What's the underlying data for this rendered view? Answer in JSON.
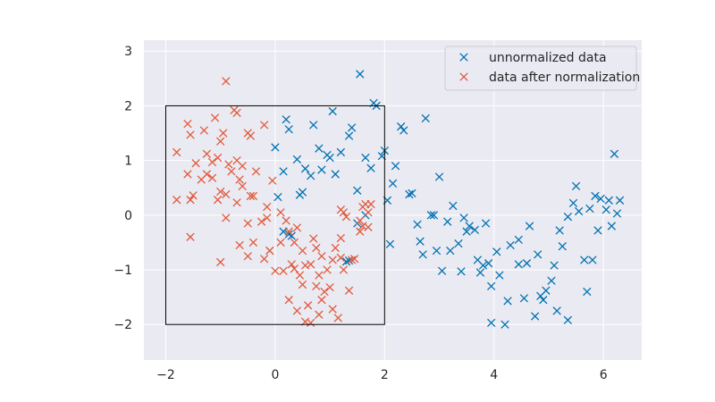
{
  "chart_data": {
    "type": "scatter",
    "title": "",
    "xlabel": "",
    "ylabel": "",
    "xlim": [
      -2.4,
      6.7
    ],
    "ylim": [
      -2.65,
      3.2
    ],
    "grid": true,
    "legend_position": "top-right",
    "xticks": [
      -2,
      0,
      2,
      4,
      6
    ],
    "yticks": [
      -2,
      -1,
      0,
      1,
      2,
      3
    ],
    "xtick_labels": [
      "−2",
      "0",
      "2",
      "4",
      "6"
    ],
    "ytick_labels": [
      "−2",
      "−1",
      "0",
      "1",
      "2",
      "3"
    ],
    "colors": {
      "background": "#eaeaf2",
      "grid": "#ffffff",
      "unnormalized": "#0072b2",
      "normalized": "#e15a3c",
      "box": "#000000"
    },
    "box": {
      "x": [
        -2,
        2
      ],
      "y": [
        -2,
        2
      ]
    },
    "series": [
      {
        "name": "unnormalized data",
        "marker": "x",
        "color": "#0072b2",
        "points": [
          [
            1.55,
            2.58
          ],
          [
            1.8,
            2.05
          ],
          [
            1.85,
            2.0
          ],
          [
            2.75,
            1.77
          ],
          [
            0.2,
            1.75
          ],
          [
            0.25,
            1.57
          ],
          [
            0.7,
            1.65
          ],
          [
            1.05,
            1.9
          ],
          [
            1.4,
            1.6
          ],
          [
            1.35,
            1.45
          ],
          [
            2.3,
            1.62
          ],
          [
            2.35,
            1.55
          ],
          [
            0.0,
            1.24
          ],
          [
            0.8,
            1.22
          ],
          [
            0.95,
            1.1
          ],
          [
            1.0,
            1.05
          ],
          [
            1.2,
            1.15
          ],
          [
            1.65,
            1.05
          ],
          [
            1.95,
            1.08
          ],
          [
            2.0,
            1.18
          ],
          [
            0.4,
            1.02
          ],
          [
            0.15,
            0.8
          ],
          [
            0.55,
            0.85
          ],
          [
            0.65,
            0.72
          ],
          [
            0.85,
            0.83
          ],
          [
            1.1,
            0.75
          ],
          [
            1.75,
            0.86
          ],
          [
            2.2,
            0.9
          ],
          [
            0.45,
            0.37
          ],
          [
            0.5,
            0.42
          ],
          [
            0.05,
            0.33
          ],
          [
            1.5,
            0.45
          ],
          [
            2.15,
            0.58
          ],
          [
            2.45,
            0.38
          ],
          [
            2.5,
            0.4
          ],
          [
            2.05,
            0.27
          ],
          [
            3.0,
            0.7
          ],
          [
            3.25,
            0.17
          ],
          [
            3.45,
            -0.05
          ],
          [
            3.55,
            -0.2
          ],
          [
            3.15,
            -0.12
          ],
          [
            2.85,
            0.0
          ],
          [
            2.9,
            0.0
          ],
          [
            2.6,
            -0.17
          ],
          [
            3.65,
            -0.27
          ],
          [
            3.85,
            -0.15
          ],
          [
            0.15,
            -0.3
          ],
          [
            0.25,
            -0.35
          ],
          [
            0.3,
            -0.38
          ],
          [
            1.5,
            -0.15
          ],
          [
            1.65,
            0.0
          ],
          [
            2.1,
            -0.53
          ],
          [
            2.65,
            -0.48
          ],
          [
            2.7,
            -0.72
          ],
          [
            2.95,
            -0.65
          ],
          [
            3.2,
            -0.65
          ],
          [
            3.35,
            -0.52
          ],
          [
            3.5,
            -0.3
          ],
          [
            3.7,
            -0.82
          ],
          [
            3.8,
            -0.92
          ],
          [
            3.75,
            -1.05
          ],
          [
            3.9,
            -0.88
          ],
          [
            4.05,
            -0.67
          ],
          [
            4.3,
            -0.55
          ],
          [
            4.45,
            -0.45
          ],
          [
            4.45,
            -0.9
          ],
          [
            4.6,
            -0.88
          ],
          [
            4.8,
            -0.72
          ],
          [
            4.65,
            -0.2
          ],
          [
            4.1,
            -1.1
          ],
          [
            3.05,
            -1.02
          ],
          [
            3.4,
            -1.03
          ],
          [
            3.95,
            -1.3
          ],
          [
            4.25,
            -1.57
          ],
          [
            4.55,
            -1.52
          ],
          [
            4.75,
            -1.85
          ],
          [
            4.85,
            -1.48
          ],
          [
            4.9,
            -1.55
          ],
          [
            4.95,
            -1.38
          ],
          [
            5.05,
            -1.2
          ],
          [
            5.1,
            -0.92
          ],
          [
            5.2,
            -0.28
          ],
          [
            5.25,
            -0.57
          ],
          [
            5.35,
            -0.03
          ],
          [
            5.45,
            0.22
          ],
          [
            5.5,
            0.53
          ],
          [
            5.55,
            0.07
          ],
          [
            5.65,
            -0.82
          ],
          [
            5.8,
            -0.82
          ],
          [
            5.75,
            0.12
          ],
          [
            5.85,
            0.35
          ],
          [
            5.9,
            -0.28
          ],
          [
            5.95,
            0.3
          ],
          [
            6.05,
            0.1
          ],
          [
            6.15,
            -0.2
          ],
          [
            6.1,
            0.27
          ],
          [
            6.25,
            0.03
          ],
          [
            6.2,
            1.12
          ],
          [
            6.3,
            0.27
          ],
          [
            5.15,
            -1.75
          ],
          [
            5.35,
            -1.92
          ],
          [
            3.95,
            -1.97
          ],
          [
            4.2,
            -2.0
          ],
          [
            5.7,
            -1.4
          ],
          [
            1.3,
            -0.85
          ],
          [
            1.35,
            -0.83
          ]
        ]
      },
      {
        "name": "data after normalization",
        "marker": "x",
        "color": "#e15a3c",
        "points": [
          [
            -0.9,
            2.45
          ],
          [
            -0.75,
            1.92
          ],
          [
            -0.7,
            1.87
          ],
          [
            -1.6,
            1.67
          ],
          [
            -1.55,
            1.47
          ],
          [
            -1.3,
            1.55
          ],
          [
            -1.1,
            1.78
          ],
          [
            -0.95,
            1.5
          ],
          [
            -1.0,
            1.35
          ],
          [
            -0.5,
            1.5
          ],
          [
            -0.45,
            1.45
          ],
          [
            -0.2,
            1.65
          ],
          [
            -1.8,
            1.15
          ],
          [
            -1.45,
            0.95
          ],
          [
            -1.25,
            1.12
          ],
          [
            -1.15,
            0.97
          ],
          [
            -1.05,
            1.05
          ],
          [
            -0.85,
            0.93
          ],
          [
            -0.7,
            1.0
          ],
          [
            -0.6,
            0.9
          ],
          [
            -1.6,
            0.75
          ],
          [
            -1.35,
            0.65
          ],
          [
            -1.25,
            0.75
          ],
          [
            -1.15,
            0.68
          ],
          [
            -0.8,
            0.8
          ],
          [
            -0.65,
            0.65
          ],
          [
            -0.35,
            0.8
          ],
          [
            -0.05,
            0.63
          ],
          [
            -1.8,
            0.28
          ],
          [
            -1.55,
            0.28
          ],
          [
            -1.5,
            0.36
          ],
          [
            -1.0,
            0.43
          ],
          [
            -1.05,
            0.28
          ],
          [
            -0.9,
            0.38
          ],
          [
            -0.6,
            0.53
          ],
          [
            -0.45,
            0.35
          ],
          [
            -0.7,
            0.23
          ],
          [
            -0.4,
            0.35
          ],
          [
            -0.15,
            0.15
          ],
          [
            0.1,
            0.05
          ],
          [
            -0.9,
            -0.05
          ],
          [
            -0.5,
            -0.15
          ],
          [
            -0.15,
            -0.05
          ],
          [
            -0.25,
            -0.12
          ],
          [
            0.2,
            -0.1
          ],
          [
            0.4,
            -0.23
          ],
          [
            1.2,
            0.1
          ],
          [
            1.25,
            0.05
          ],
          [
            1.6,
            0.15
          ],
          [
            1.65,
            0.2
          ],
          [
            1.3,
            -0.03
          ],
          [
            1.55,
            -0.1
          ],
          [
            1.75,
            0.2
          ],
          [
            1.7,
            0.05
          ],
          [
            1.2,
            -0.42
          ],
          [
            1.55,
            -0.3
          ],
          [
            1.6,
            -0.2
          ],
          [
            -1.55,
            -0.4
          ],
          [
            -0.65,
            -0.55
          ],
          [
            -0.4,
            -0.5
          ],
          [
            -0.1,
            -0.65
          ],
          [
            0.1,
            -0.5
          ],
          [
            0.25,
            -0.3
          ],
          [
            0.35,
            -0.5
          ],
          [
            0.5,
            -0.65
          ],
          [
            0.7,
            -0.43
          ],
          [
            0.75,
            -0.6
          ],
          [
            0.85,
            -0.75
          ],
          [
            1.1,
            -0.6
          ],
          [
            1.2,
            -0.78
          ],
          [
            1.4,
            -0.82
          ],
          [
            -1.0,
            -0.86
          ],
          [
            -0.5,
            -0.75
          ],
          [
            -0.2,
            -0.8
          ],
          [
            -0.1,
            -0.65
          ],
          [
            0.0,
            -1.02
          ],
          [
            0.15,
            -1.02
          ],
          [
            0.3,
            -0.9
          ],
          [
            0.35,
            -0.98
          ],
          [
            0.45,
            -1.1
          ],
          [
            0.55,
            -0.92
          ],
          [
            0.65,
            -0.9
          ],
          [
            0.8,
            -1.1
          ],
          [
            0.95,
            -1.0
          ],
          [
            1.05,
            -0.82
          ],
          [
            1.25,
            -1.0
          ],
          [
            1.35,
            -1.38
          ],
          [
            0.5,
            -1.27
          ],
          [
            0.75,
            -1.3
          ],
          [
            0.9,
            -1.4
          ],
          [
            1.0,
            -1.32
          ],
          [
            0.25,
            -1.55
          ],
          [
            0.6,
            -1.65
          ],
          [
            0.85,
            -1.55
          ],
          [
            1.05,
            -1.72
          ],
          [
            0.4,
            -1.75
          ],
          [
            0.8,
            -1.82
          ],
          [
            1.15,
            -1.88
          ],
          [
            0.55,
            -1.95
          ],
          [
            0.65,
            -1.97
          ],
          [
            1.7,
            -0.22
          ],
          [
            1.45,
            -0.8
          ]
        ]
      }
    ]
  }
}
